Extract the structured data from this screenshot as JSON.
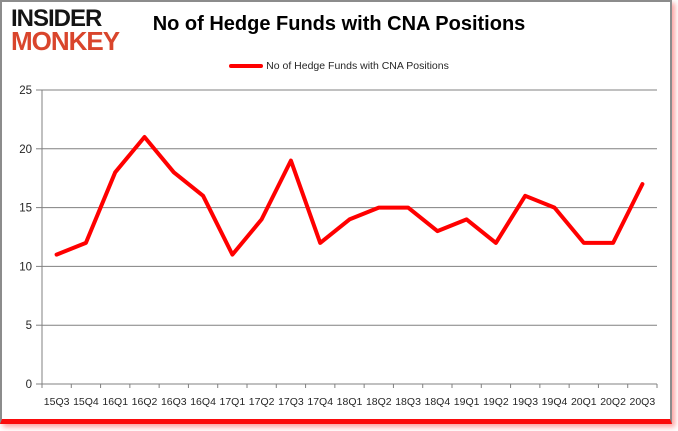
{
  "logo": {
    "line1": "INSIDER",
    "line2": "MONKEY"
  },
  "title": "No of Hedge Funds with CNA Positions",
  "legend": {
    "label": "No of Hedge Funds with CNA Positions"
  },
  "chart_data": {
    "type": "line",
    "title": "No of Hedge Funds with CNA Positions",
    "categories": [
      "15Q3",
      "15Q4",
      "16Q1",
      "16Q2",
      "16Q3",
      "16Q4",
      "17Q1",
      "17Q2",
      "17Q3",
      "17Q4",
      "18Q1",
      "18Q2",
      "18Q3",
      "18Q4",
      "19Q1",
      "19Q2",
      "19Q3",
      "19Q4",
      "20Q1",
      "20Q2",
      "20Q3"
    ],
    "series": [
      {
        "name": "No of Hedge Funds with CNA Positions",
        "color": "#ff0000",
        "values": [
          11,
          12,
          18,
          21,
          18,
          16,
          11,
          14,
          19,
          12,
          14,
          15,
          15,
          13,
          14,
          12,
          16,
          15,
          12,
          12,
          17
        ]
      }
    ],
    "ylim": [
      0,
      25
    ],
    "ytick_step": 5,
    "yticks": [
      0,
      5,
      10,
      15,
      20,
      25
    ],
    "grid": true,
    "legend_position": "top",
    "xlabel": "",
    "ylabel": ""
  },
  "colors": {
    "line": "#ff0000",
    "grid": "#808080",
    "axis": "#808080",
    "tick_text": "#262626",
    "title_text": "#000000",
    "logo_black": "#141414",
    "logo_red": "#d9452c",
    "frame_border": "#8c8c8c",
    "bottom_bar": "#fb0b0b"
  }
}
